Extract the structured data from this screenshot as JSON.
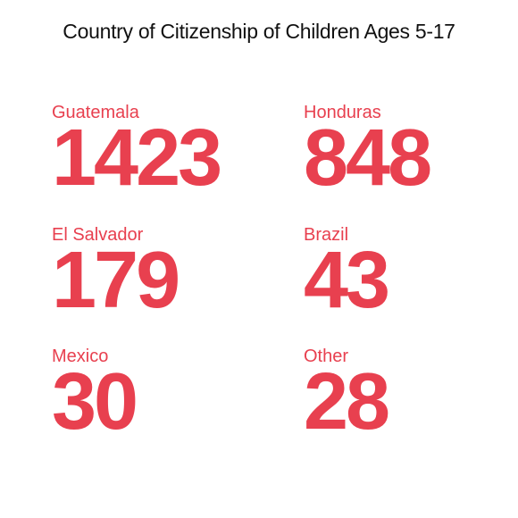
{
  "chart_data": {
    "type": "table",
    "title": "Country of Citizenship of Children Ages 5-17",
    "accent_color": "#e8404f",
    "categories": [
      "Guatemala",
      "Honduras",
      "El Salvador",
      "Brazil",
      "Mexico",
      "Other"
    ],
    "values": [
      1423,
      848,
      179,
      43,
      30,
      28
    ],
    "items": [
      {
        "label": "Guatemala",
        "value": "1423"
      },
      {
        "label": "Honduras",
        "value": "848"
      },
      {
        "label": "El Salvador",
        "value": "179"
      },
      {
        "label": "Brazil",
        "value": "43"
      },
      {
        "label": "Mexico",
        "value": "30"
      },
      {
        "label": "Other",
        "value": "28"
      }
    ]
  }
}
